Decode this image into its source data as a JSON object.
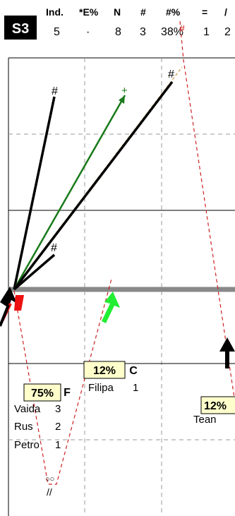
{
  "badge": "S3",
  "header": {
    "columns": [
      {
        "label": "Ind.",
        "value": "5"
      },
      {
        "label": "*E%",
        "value": "·"
      },
      {
        "label": "N",
        "value": "8"
      },
      {
        "label": "#",
        "value": "3"
      },
      {
        "label": "#%",
        "value": "38%"
      },
      {
        "label": "=",
        "value": "1"
      },
      {
        "label": "/",
        "value": "2"
      }
    ]
  },
  "marks": {
    "hash": "#",
    "plus": "+",
    "circles": "○○",
    "slashes": "//"
  },
  "nodes": [
    {
      "pct": "75%",
      "letter": "F",
      "names": [
        "Vaida",
        "Rus",
        "Petro"
      ],
      "counts": [
        "3",
        "2",
        "1"
      ]
    },
    {
      "pct": "12%",
      "letter": "C",
      "names": [
        "Filipa"
      ],
      "counts": [
        "1"
      ]
    },
    {
      "pct": "12%",
      "letter": "",
      "names": [
        "Tean"
      ],
      "counts": [
        ""
      ]
    }
  ],
  "colors": {
    "badge_bg": "#000000",
    "badge_fg": "#ffffff",
    "box_bg": "#ffffcc",
    "green": "#1a7a1a",
    "bright_green": "#22ee33",
    "red": "#ee1111",
    "dashed_red": "#cc2222",
    "dashed_orange": "#cc9944",
    "grid": "#999999",
    "baseline": "#888888"
  }
}
